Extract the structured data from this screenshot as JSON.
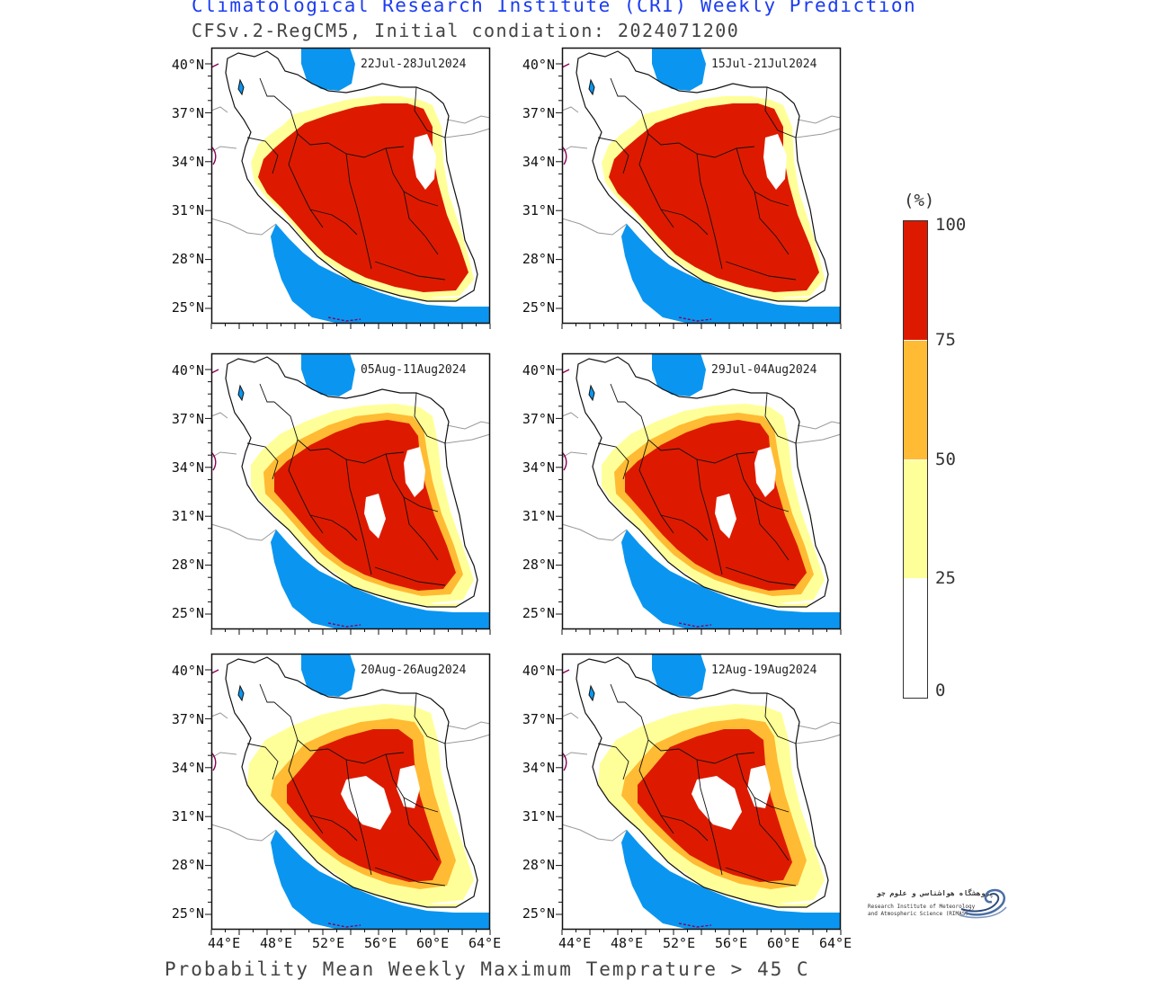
{
  "header": {
    "title": "Climatological Research Institute (CRI) Weekly Prediction",
    "subtitle": "CFSv.2-RegCM5, Initial condiation: 2024071200"
  },
  "footer": {
    "caption": "Probability Mean Weekly Maximum Temprature > 45 C"
  },
  "axes": {
    "lat_ticks": [
      "40°N",
      "37°N",
      "34°N",
      "31°N",
      "28°N",
      "25°N"
    ],
    "lon_ticks": [
      "44°E",
      "48°E",
      "52°E",
      "56°E",
      "60°E",
      "64°E"
    ]
  },
  "panels": [
    {
      "date_range": "22Jul-28Jul2024",
      "intensity": "very_high"
    },
    {
      "date_range": "15Jul-21Jul2024",
      "intensity": "very_high"
    },
    {
      "date_range": "05Aug-11Aug2024",
      "intensity": "high"
    },
    {
      "date_range": "29Jul-04Aug2024",
      "intensity": "high"
    },
    {
      "date_range": "20Aug-26Aug2024",
      "intensity": "medium"
    },
    {
      "date_range": "12Aug-19Aug2024",
      "intensity": "medium"
    }
  ],
  "legend": {
    "unit": "(%)",
    "ticks": [
      "100",
      "75",
      "50",
      "25",
      "0"
    ],
    "bins": [
      {
        "range": "75-100",
        "color": "#dd1a00"
      },
      {
        "range": "50-75",
        "color": "#ffbb33"
      },
      {
        "range": "25-50",
        "color": "#ffff99"
      },
      {
        "range": "0-25",
        "color": "#ffffff"
      }
    ]
  },
  "colors": {
    "sea": "#0a96f0",
    "land_outline": "#111111",
    "neighbor_outline": "#999999",
    "title": "#1c3cf0"
  },
  "logo": {
    "persian_text": "پژوهشگاه هواشناسی و علوم جو",
    "english_line1": "Research Institute of Meteorology",
    "english_line2": "and Atmospheric Science (RIMAS)"
  }
}
